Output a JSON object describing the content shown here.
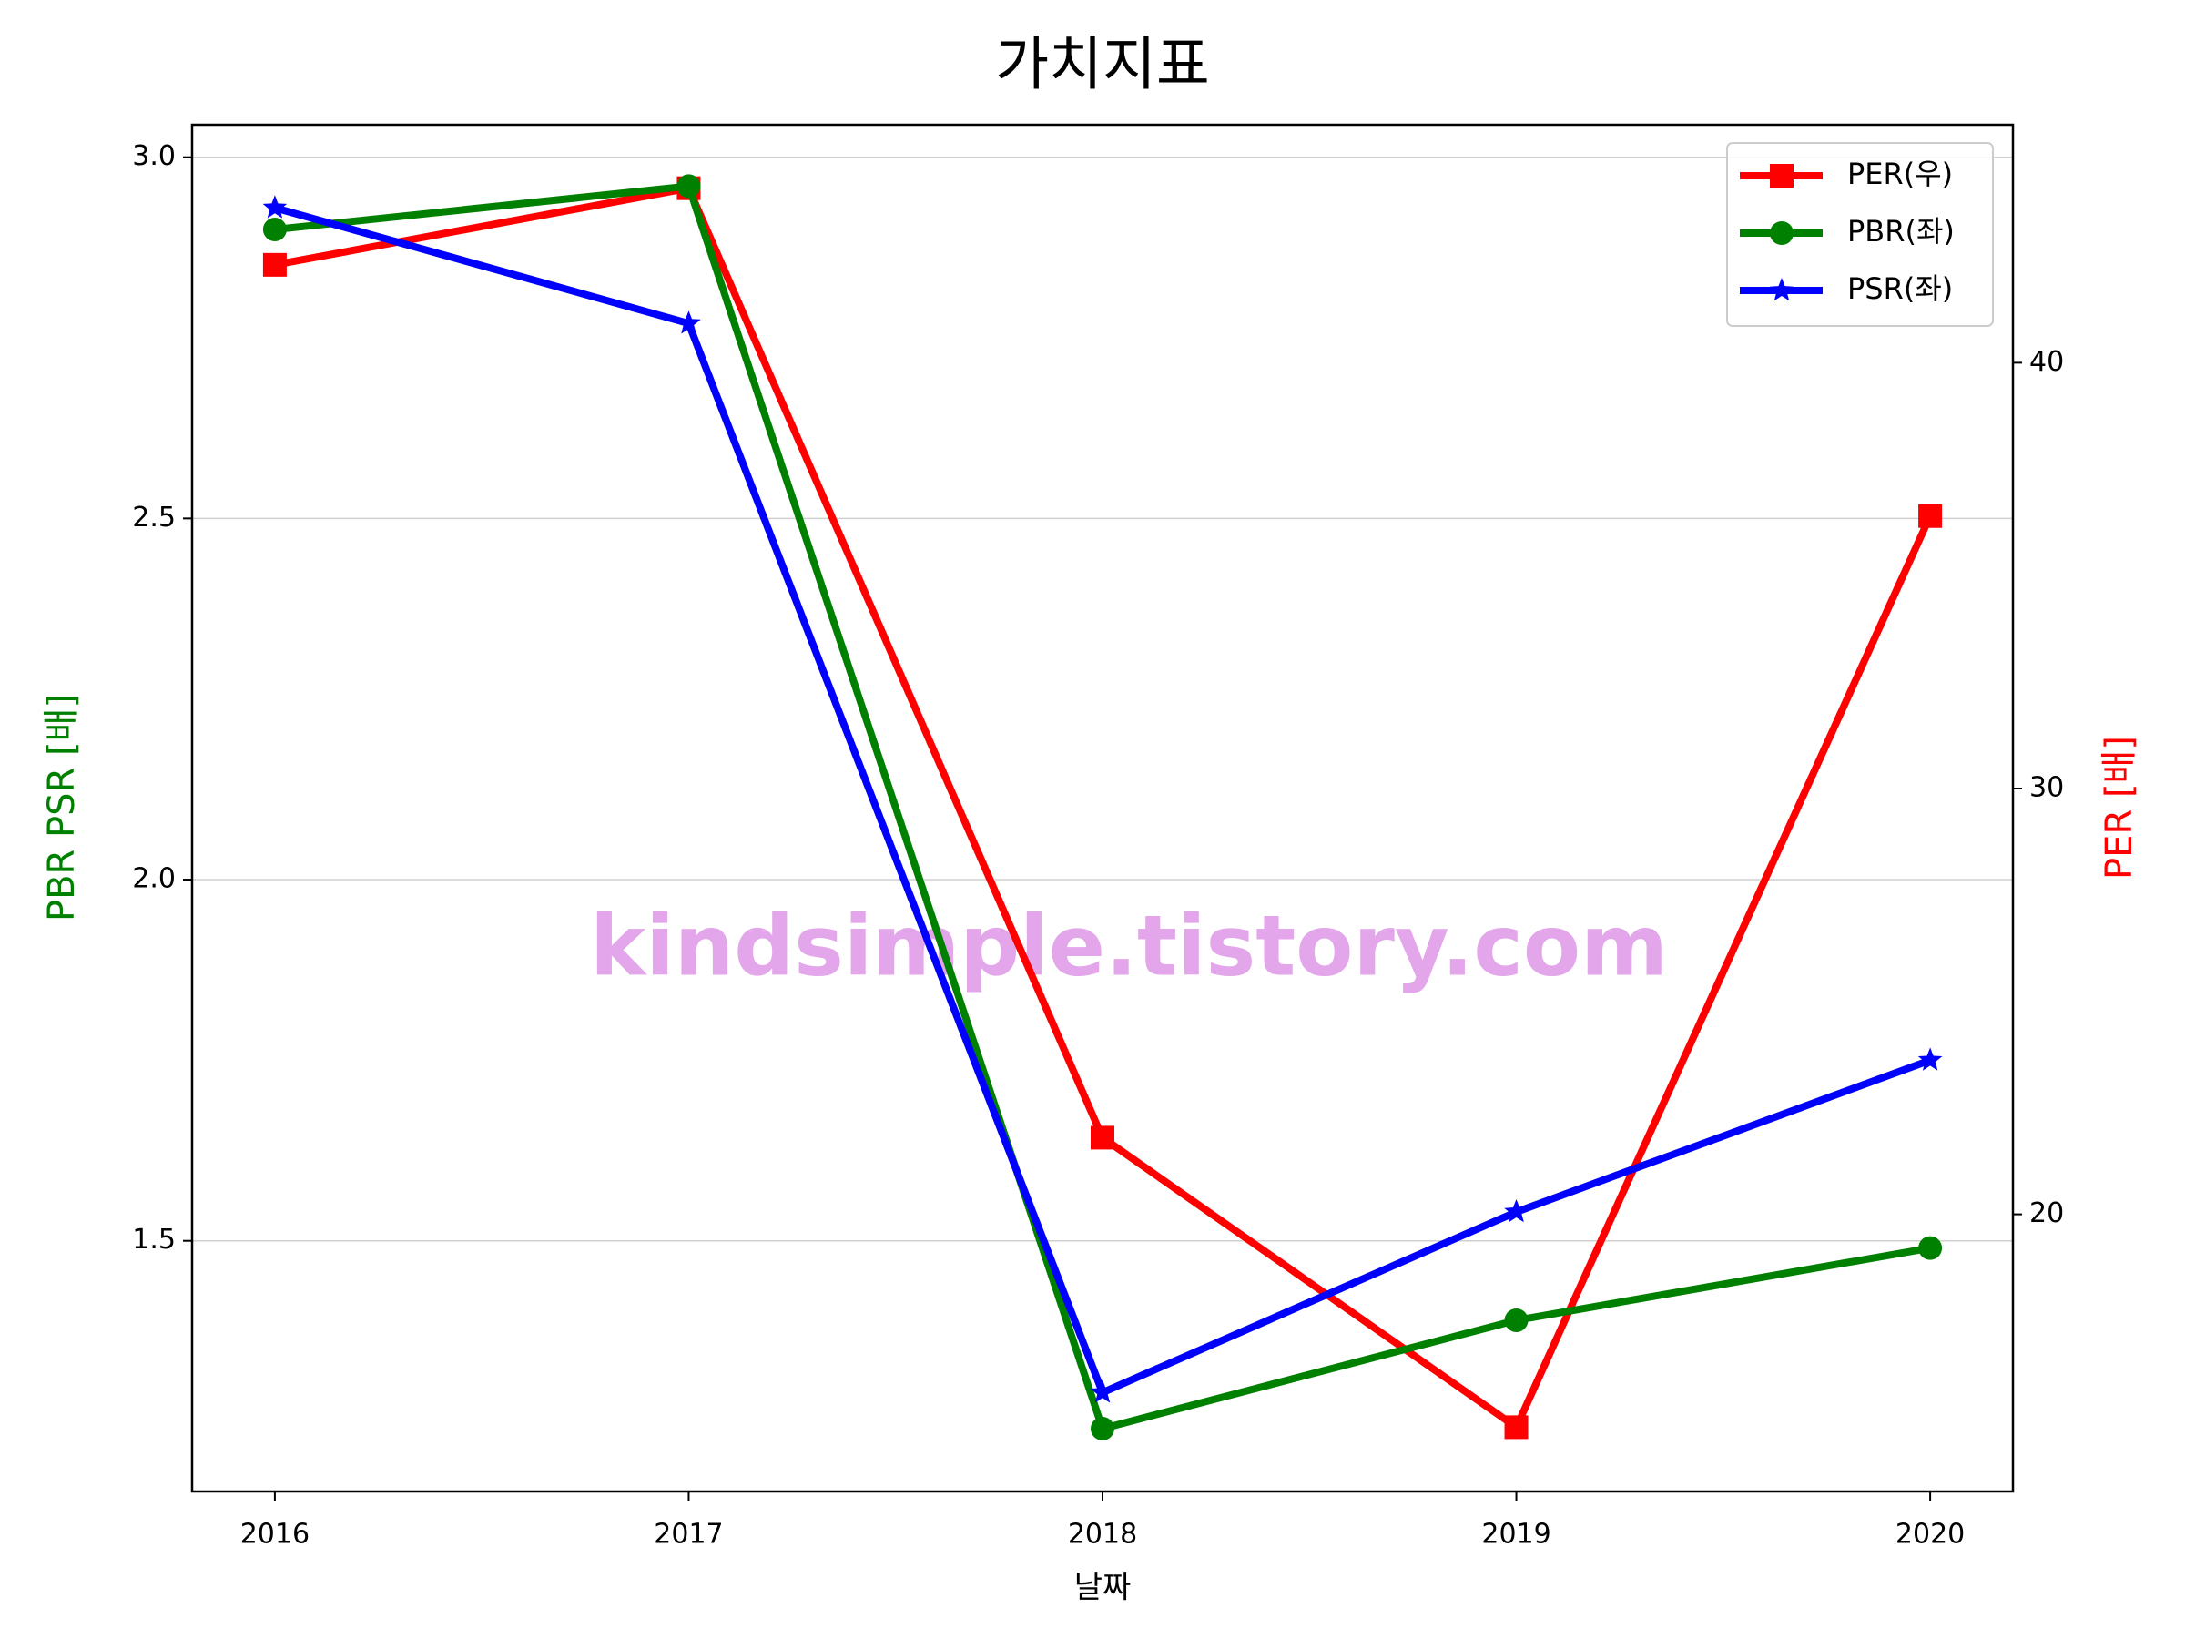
{
  "chart_data": {
    "type": "line",
    "title": "가치지표",
    "x_label": "날짜",
    "y_label": "PBR PSR [배]",
    "y2_label": "PER [배]",
    "y_label_color": "green",
    "y2_label_color": "red",
    "annotation": "kindsimple.tistory.com",
    "x": [
      2016,
      2017,
      2018,
      2019,
      2020
    ],
    "xlim": [
      2015.8,
      2020.2
    ],
    "xticks": [
      2016,
      2017,
      2018,
      2019,
      2020
    ],
    "ylim": [
      1.153,
      3.045
    ],
    "yticks": [
      1.5,
      {
        "value": 2,
        "label": "2.0"
      },
      2.5,
      {
        "value": 3,
        "label": "3.0"
      }
    ],
    "y2lim": [
      13.49,
      45.59
    ],
    "y2ticks": [
      20,
      30,
      40
    ],
    "grid": true,
    "legend": "upper right",
    "series": [
      {
        "name": "PER(우)",
        "color": "red",
        "marker": "square",
        "axis": "y2",
        "values": [
          42.3,
          44.1,
          21.8,
          15.0,
          36.4
        ]
      },
      {
        "name": "PBR(좌)",
        "color": "green",
        "marker": "circle",
        "values": [
          2.9,
          2.96,
          1.24,
          1.39,
          1.49
        ]
      },
      {
        "name": "PSR(좌)",
        "color": "blue",
        "marker": "star",
        "values": [
          2.93,
          2.77,
          1.29,
          1.54,
          1.75
        ]
      }
    ]
  }
}
